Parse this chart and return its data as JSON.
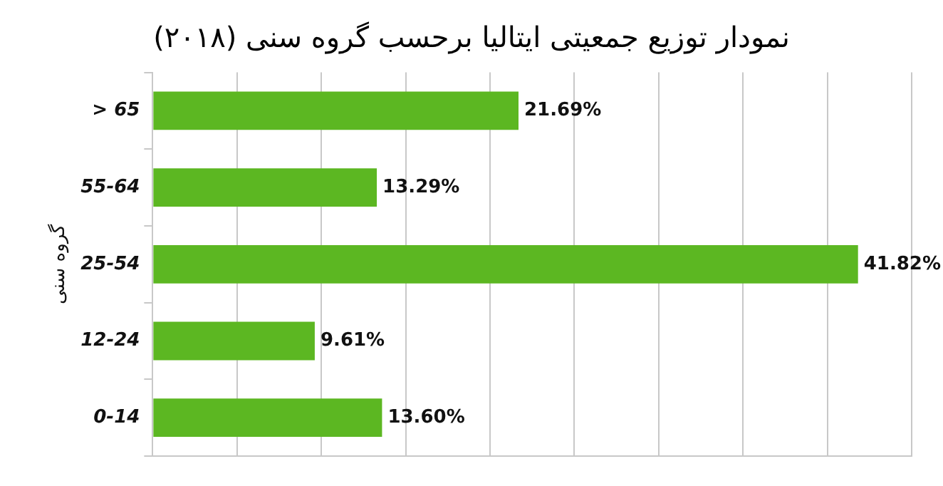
{
  "chart_data": {
    "type": "bar",
    "orientation": "horizontal",
    "title": "نمودار توزیع جمعیتی ایتالیا برحسب گروه سنی (۲۰۱۸)",
    "ylabel": "گروه سنی",
    "categories": [
      "> 65",
      "55-64",
      "25-54",
      "12-24",
      "0-14"
    ],
    "values": [
      21.69,
      13.29,
      41.82,
      9.61,
      13.6
    ],
    "value_labels": [
      "21.69%",
      "13.29%",
      "41.82%",
      "9.61%",
      "13.60%"
    ],
    "color": "#5cb722",
    "xlim": [
      0,
      45
    ],
    "xticks": [
      {
        "value": 0,
        "label": null
      },
      {
        "value": 5,
        "label": null
      },
      {
        "value": 10,
        "label": null
      },
      {
        "value": 15,
        "label": null
      },
      {
        "value": 20,
        "label": null
      },
      {
        "value": 25,
        "label": null
      },
      {
        "value": 30,
        "label": null
      },
      {
        "value": 35,
        "label": null
      },
      {
        "value": 40,
        "label": null
      },
      {
        "value": 45,
        "label": null
      }
    ],
    "grid": "x",
    "tick_labels": "y",
    "legend": false
  }
}
